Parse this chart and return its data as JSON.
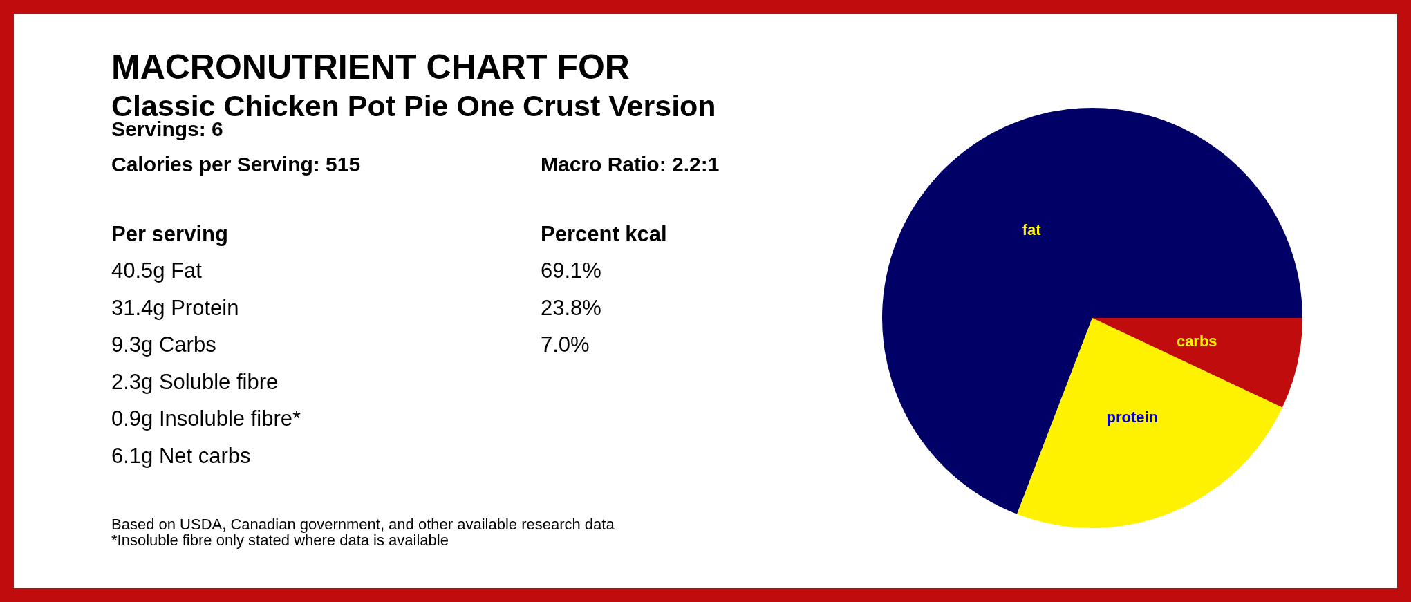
{
  "chart_data": {
    "type": "pie",
    "title": "MACRONUTRIENT CHART FOR",
    "subtitle": "Classic Chicken Pot Pie One Crust Version",
    "categories": [
      "fat",
      "protein",
      "carbs"
    ],
    "values": [
      69.1,
      23.8,
      7.0
    ],
    "colors": [
      "#000066",
      "#fff200",
      "#c00c0c"
    ],
    "annotations": [
      "Servings: 6",
      "Calories per Serving:  515",
      "Macro Ratio: 2.2:1",
      "Per serving",
      "Percent kcal",
      "40.5g Fat",
      "69.1%",
      "31.4g Protein",
      "23.8%",
      "9.3g Carbs",
      "7.0%",
      "2.3g Soluble fibre",
      "0.9g Insoluble fibre*",
      "6.1g Net carbs",
      "Based on USDA, Canadian government, and other available research data",
      "*Insoluble fibre only stated where data is available"
    ]
  }
}
